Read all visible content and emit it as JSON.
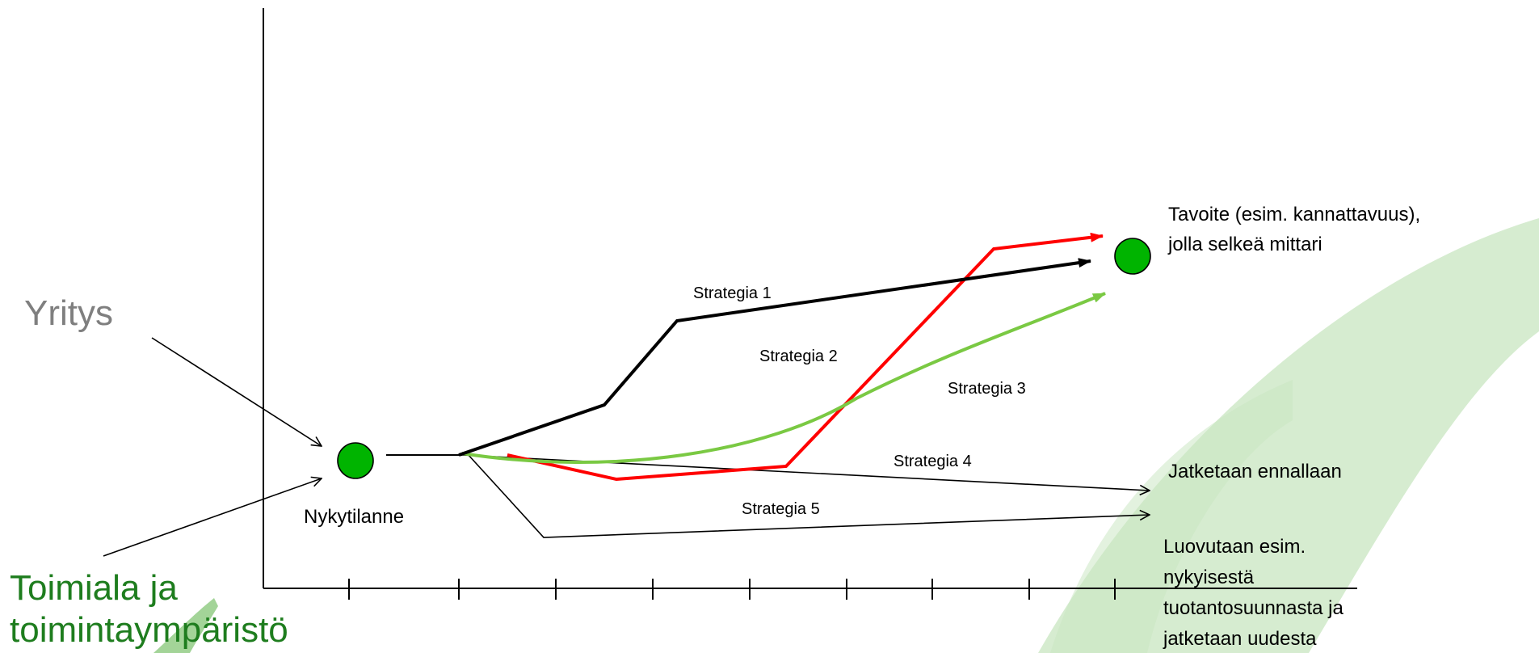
{
  "labels": {
    "yritys": "Yritys",
    "toimiala_line1": "Toimiala ja",
    "toimiala_line2": "toimintaympäristö",
    "nykytilanne": "Nykytilanne",
    "tavoite_line1": "Tavoite (esim. kannattavuus),",
    "tavoite_line2": "jolla selkeä mittari",
    "jatketaan": "Jatketaan ennallaan",
    "luovutaan_line1": "Luovutaan esim.",
    "luovutaan_line2": "nykyisestä",
    "luovutaan_line3": "tuotantosuunnasta ja",
    "luovutaan_line4": "jatketaan uudesta"
  },
  "strategies": [
    {
      "label": "Strategia 1",
      "color": "#000000"
    },
    {
      "label": "Strategia 2",
      "color": "#ff0000"
    },
    {
      "label": "Strategia 3",
      "color": "#7ac943"
    },
    {
      "label": "Strategia 4",
      "color": "#000000"
    },
    {
      "label": "Strategia 5",
      "color": "#000000"
    }
  ],
  "colors": {
    "node": "#00b400",
    "background_swoosh": "#c8e6c0",
    "toimiala_text": "#1e7d1e",
    "yritys_text": "#7f7f7f"
  }
}
